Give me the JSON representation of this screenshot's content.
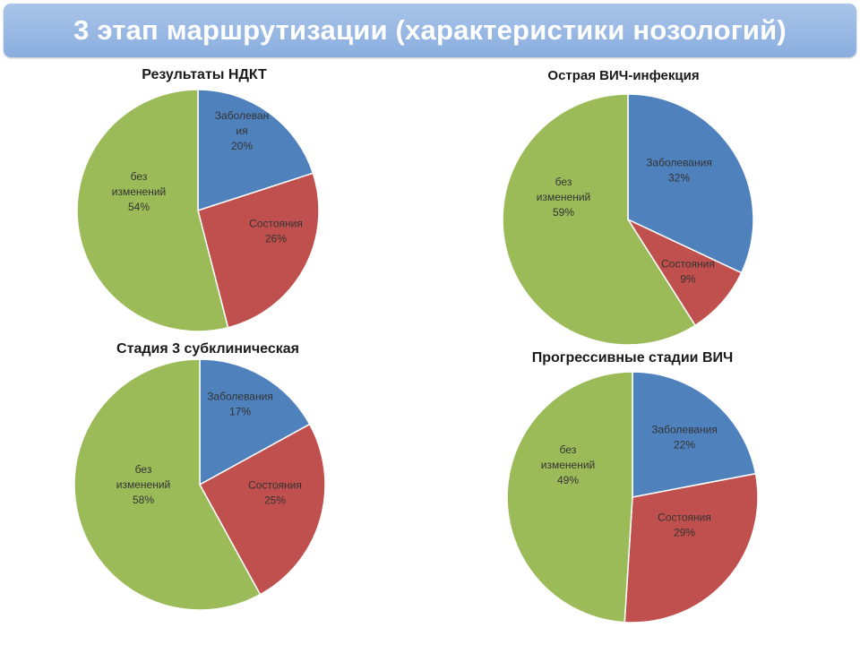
{
  "slide": {
    "title": "3 этап маршрутизации (характеристики нозологий)"
  },
  "colors": {
    "blue": "#4f81bd",
    "red": "#c0504d",
    "green": "#9bbb59",
    "banner": "#8eb1e0"
  },
  "chart_data": [
    {
      "type": "pie",
      "title": "Результаты НДКТ",
      "slices": [
        {
          "label": "Заболевания",
          "display_lines": [
            "Заболеван",
            "ия",
            "20%"
          ],
          "value": 20,
          "color": "#4f81bd"
        },
        {
          "label": "Состояния",
          "display_lines": [
            "Состояния",
            "26%"
          ],
          "value": 26,
          "color": "#c0504d"
        },
        {
          "label": "без изменений",
          "display_lines": [
            "без",
            "изменений",
            "54%"
          ],
          "value": 54,
          "color": "#9bbb59"
        }
      ]
    },
    {
      "type": "pie",
      "title": "Острая ВИЧ-инфекция",
      "slices": [
        {
          "label": "Заболевания",
          "display_lines": [
            "Заболевания",
            "32%"
          ],
          "value": 32,
          "color": "#4f81bd"
        },
        {
          "label": "Состояния",
          "display_lines": [
            "Состояния",
            "9%"
          ],
          "value": 9,
          "color": "#c0504d"
        },
        {
          "label": "без изменений",
          "display_lines": [
            "без",
            "изменений",
            "59%"
          ],
          "value": 59,
          "color": "#9bbb59"
        }
      ]
    },
    {
      "type": "pie",
      "title": "Стадия 3 субклиническая",
      "slices": [
        {
          "label": "Заболевания",
          "display_lines": [
            "Заболевания",
            "17%"
          ],
          "value": 17,
          "color": "#4f81bd"
        },
        {
          "label": "Состояния",
          "display_lines": [
            "Состояния",
            "25%"
          ],
          "value": 25,
          "color": "#c0504d"
        },
        {
          "label": "без изменений",
          "display_lines": [
            "без",
            "изменений",
            "58%"
          ],
          "value": 58,
          "color": "#9bbb59"
        }
      ]
    },
    {
      "type": "pie",
      "title": "Прогрессивные стадии ВИЧ",
      "slices": [
        {
          "label": "Заболевания",
          "display_lines": [
            "Заболевания",
            "22%"
          ],
          "value": 22,
          "color": "#4f81bd"
        },
        {
          "label": "Состояния",
          "display_lines": [
            "Состояния",
            "29%"
          ],
          "value": 29,
          "color": "#c0504d"
        },
        {
          "label": "без изменений",
          "display_lines": [
            "без",
            "изменений",
            "49%"
          ],
          "value": 49,
          "color": "#9bbb59"
        }
      ]
    }
  ]
}
